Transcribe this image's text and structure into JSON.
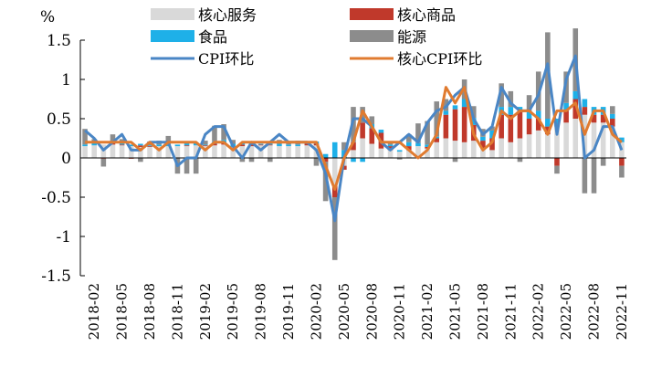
{
  "chart_data": {
    "type": "bar",
    "ylabel": "%",
    "ylim": [
      -1.5,
      1.5
    ],
    "yticks": [
      "1.5",
      "1",
      "0.5",
      "0",
      "-0.5",
      "-1",
      "-1.5"
    ],
    "months": [
      "2018-01",
      "2018-02",
      "2018-03",
      "2018-04",
      "2018-05",
      "2018-06",
      "2018-07",
      "2018-08",
      "2018-09",
      "2018-10",
      "2018-11",
      "2018-12",
      "2019-01",
      "2019-02",
      "2019-03",
      "2019-04",
      "2019-05",
      "2019-06",
      "2019-07",
      "2019-08",
      "2019-09",
      "2019-10",
      "2019-11",
      "2019-12",
      "2020-01",
      "2020-02",
      "2020-03",
      "2020-04",
      "2020-05",
      "2020-06",
      "2020-07",
      "2020-08",
      "2020-09",
      "2020-10",
      "2020-11",
      "2020-12",
      "2021-01",
      "2021-02",
      "2021-03",
      "2021-04",
      "2021-05",
      "2021-06",
      "2021-07",
      "2021-08",
      "2021-09",
      "2021-10",
      "2021-11",
      "2021-12",
      "2022-01",
      "2022-02",
      "2022-03",
      "2022-04",
      "2022-05",
      "2022-06",
      "2022-07",
      "2022-08",
      "2022-09",
      "2022-10",
      "2022-11"
    ],
    "x_tick_labels": [
      "2018-02",
      "2018-05",
      "2018-08",
      "2018-11",
      "2019-02",
      "2019-05",
      "2019-08",
      "2019-11",
      "2020-02",
      "2020-05",
      "2020-08",
      "2020-11",
      "2021-02",
      "2021-05",
      "2021-08",
      "2021-11",
      "2022-02",
      "2022-05",
      "2022-08",
      "2022-11"
    ],
    "legend_placement": "top",
    "series": [
      {
        "name": "核心服务",
        "kind": "bar",
        "color": "#d9d9d9",
        "values": [
          0.15,
          0.16,
          0.17,
          0.17,
          0.16,
          0.15,
          0.14,
          0.14,
          0.15,
          0.15,
          0.15,
          0.15,
          0.16,
          0.15,
          0.16,
          0.17,
          0.14,
          0.15,
          0.15,
          0.16,
          0.16,
          0.15,
          0.15,
          0.15,
          0.16,
          0.16,
          0.0,
          -0.35,
          -0.1,
          0.1,
          0.25,
          0.18,
          0.12,
          0.1,
          0.08,
          0.1,
          0.15,
          0.12,
          0.2,
          0.25,
          0.22,
          0.2,
          0.22,
          0.12,
          0.1,
          0.25,
          0.2,
          0.25,
          0.3,
          0.35,
          0.3,
          0.4,
          0.45,
          0.5,
          0.55,
          0.45,
          0.45,
          0.4,
          0.2
        ]
      },
      {
        "name": "核心商品",
        "kind": "bar",
        "color": "#c0392b",
        "values": [
          0.0,
          0.0,
          -0.01,
          0.02,
          0.01,
          -0.01,
          0.02,
          0.01,
          0.0,
          0.0,
          0.0,
          0.01,
          0.0,
          0.01,
          0.02,
          0.02,
          0.0,
          0.02,
          0.02,
          0.01,
          0.01,
          0.0,
          0.0,
          0.0,
          0.02,
          0.02,
          -0.05,
          -0.15,
          -0.05,
          0.1,
          0.2,
          0.2,
          0.2,
          0.05,
          0.0,
          0.05,
          0.0,
          0.02,
          0.05,
          0.3,
          0.4,
          0.45,
          0.2,
          0.1,
          0.15,
          0.3,
          0.35,
          0.35,
          0.2,
          0.15,
          0.1,
          -0.1,
          0.15,
          0.25,
          0.1,
          0.1,
          0.1,
          0.1,
          -0.1
        ]
      },
      {
        "name": "食品",
        "kind": "bar",
        "color": "#1eb0e8",
        "values": [
          0.02,
          0.03,
          0.0,
          0.01,
          0.02,
          0.02,
          0.02,
          0.01,
          0.02,
          0.03,
          0.02,
          0.03,
          0.03,
          0.01,
          0.03,
          0.04,
          0.04,
          0.02,
          0.03,
          0.01,
          0.02,
          0.03,
          0.02,
          0.02,
          0.03,
          0.03,
          0.05,
          0.2,
          0.1,
          -0.05,
          -0.05,
          0.05,
          0.04,
          0.02,
          0.02,
          0.05,
          0.04,
          0.03,
          0.02,
          0.05,
          0.05,
          0.1,
          0.09,
          0.05,
          0.1,
          0.1,
          0.1,
          0.05,
          0.1,
          0.1,
          0.1,
          0.1,
          0.1,
          0.1,
          0.1,
          0.1,
          0.1,
          0.06,
          0.06
        ]
      },
      {
        "name": "能源",
        "kind": "bar",
        "color": "#8c8c8c",
        "values": [
          0.2,
          0.05,
          -0.1,
          0.1,
          0.05,
          0.0,
          -0.05,
          0.05,
          0.05,
          0.1,
          -0.2,
          -0.2,
          -0.2,
          0.05,
          0.2,
          0.2,
          0.05,
          -0.05,
          -0.05,
          0.0,
          -0.05,
          0.05,
          0.02,
          0.05,
          0.0,
          -0.1,
          -0.5,
          -0.8,
          0.1,
          0.45,
          0.2,
          0.1,
          0.0,
          0.02,
          -0.02,
          0.1,
          0.25,
          0.3,
          0.45,
          0.15,
          -0.05,
          0.25,
          0.15,
          0.1,
          0.05,
          0.3,
          0.2,
          -0.05,
          0.2,
          0.5,
          1.1,
          -0.1,
          0.4,
          0.8,
          -0.45,
          -0.45,
          -0.1,
          0.1,
          -0.15
        ]
      },
      {
        "name": "CPI环比",
        "kind": "line",
        "color": "#4a86c5",
        "values": [
          0.35,
          0.25,
          0.1,
          0.2,
          0.3,
          0.1,
          0.1,
          0.2,
          0.2,
          0.2,
          -0.1,
          0.0,
          0.0,
          0.3,
          0.4,
          0.4,
          0.15,
          0.0,
          0.2,
          0.1,
          0.2,
          0.3,
          0.2,
          0.2,
          0.2,
          0.1,
          -0.2,
          -0.8,
          0.0,
          0.5,
          0.5,
          0.4,
          0.2,
          0.1,
          0.2,
          0.3,
          0.2,
          0.45,
          0.6,
          0.65,
          0.8,
          0.9,
          0.5,
          0.3,
          0.4,
          0.9,
          0.7,
          0.6,
          0.6,
          0.8,
          1.2,
          0.3,
          1.0,
          1.3,
          0.0,
          0.1,
          0.4,
          0.4,
          0.1
        ]
      },
      {
        "name": "核心CPI环比",
        "kind": "line",
        "color": "#e07b30",
        "values": [
          0.2,
          0.2,
          0.2,
          0.2,
          0.2,
          0.2,
          0.1,
          0.2,
          0.1,
          0.2,
          0.2,
          0.2,
          0.2,
          0.1,
          0.2,
          0.2,
          0.1,
          0.2,
          0.2,
          0.2,
          0.2,
          0.2,
          0.2,
          0.2,
          0.2,
          0.2,
          -0.1,
          -0.4,
          0.0,
          0.2,
          0.6,
          0.4,
          0.2,
          0.2,
          0.2,
          0.1,
          0.0,
          0.1,
          0.3,
          0.9,
          0.7,
          0.9,
          0.3,
          0.1,
          0.2,
          0.6,
          0.5,
          0.6,
          0.6,
          0.5,
          0.3,
          0.6,
          0.6,
          0.7,
          0.3,
          0.6,
          0.6,
          0.3,
          0.2
        ]
      }
    ]
  }
}
